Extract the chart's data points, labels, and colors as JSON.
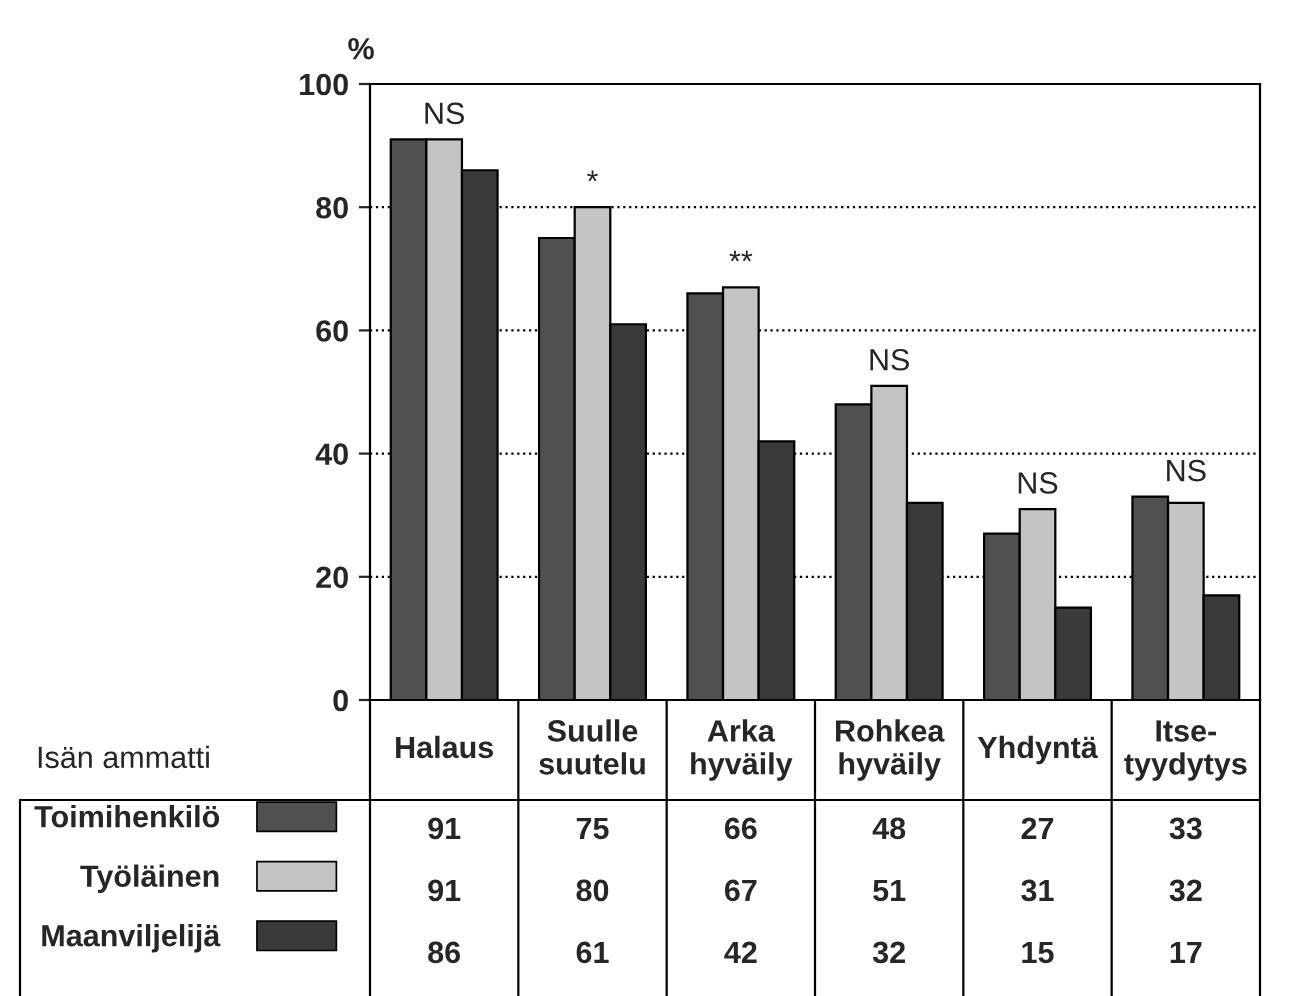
{
  "chart_data": {
    "type": "bar",
    "ylabel": "%",
    "legend_title": "Isän ammatti",
    "categories": [
      "Halaus",
      "Suulle\nsuutelu",
      "Arka\nhyväily",
      "Rohkea\nhyväily",
      "Yhdyntä",
      "Itse-\ntyydytys"
    ],
    "series": [
      {
        "name": "Toimihenkilö",
        "color": "#505050",
        "values": [
          91,
          75,
          66,
          48,
          27,
          33
        ]
      },
      {
        "name": "Työläinen",
        "color": "#c4c4c4",
        "values": [
          91,
          80,
          67,
          51,
          31,
          32
        ]
      },
      {
        "name": "Maanviljelijä",
        "color": "#3a3a3a",
        "values": [
          86,
          61,
          42,
          32,
          15,
          17
        ]
      }
    ],
    "ylim": [
      0,
      100
    ],
    "yticks": [
      0,
      20,
      40,
      60,
      80,
      100
    ],
    "grid": "y",
    "data_labels": true,
    "legend": "bottom left",
    "annotations": [
      "NS",
      "*",
      "**",
      "NS",
      "NS",
      "NS"
    ]
  }
}
